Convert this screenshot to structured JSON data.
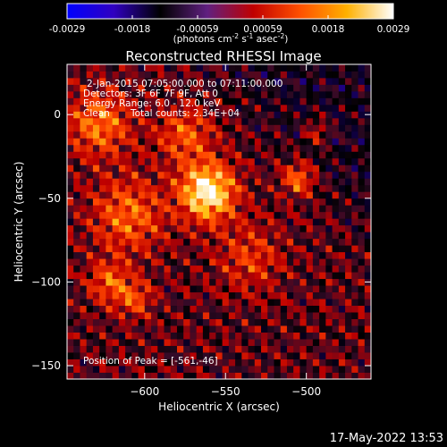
{
  "colorbar": {
    "tick_labels": [
      "-0.0029",
      "-0.0018",
      "-0.00059",
      "0.00059",
      "0.0018",
      "0.0029"
    ],
    "unit_parts": [
      "(photons cm",
      "-2",
      " s",
      "-1",
      " asec",
      "-2",
      ")"
    ],
    "colors": [
      "#0000ff",
      "#3000c0",
      "#000000",
      "#602080",
      "#c00000",
      "#ff5000",
      "#ffb000",
      "#ffffff"
    ]
  },
  "chart_data": {
    "type": "heatmap",
    "title": "Reconstructed RHESSI Image",
    "xlabel": "Heliocentric X (arcsec)",
    "ylabel": "Heliocentric Y (arcsec)",
    "xlim": [
      -648,
      -460
    ],
    "ylim": [
      -158,
      30
    ],
    "x_ticks": [
      -600,
      -550,
      -500
    ],
    "y_ticks": [
      -150,
      -100,
      -50,
      0
    ],
    "x_tick_labels": [
      "−600",
      "−550",
      "−500"
    ],
    "y_tick_labels": [
      "−150",
      "−100",
      "−50",
      "0"
    ],
    "sources": [
      {
        "x": -561,
        "y": -46,
        "amp": 1.0,
        "sigma": 12
      },
      {
        "x": -505,
        "y": -38,
        "amp": 0.55,
        "sigma": 7
      },
      {
        "x": -493,
        "y": -10,
        "amp": 0.35,
        "sigma": 6
      },
      {
        "x": -622,
        "y": -100,
        "amp": 0.45,
        "sigma": 9
      },
      {
        "x": -606,
        "y": -110,
        "amp": 0.4,
        "sigma": 8
      },
      {
        "x": -628,
        "y": -5,
        "amp": 0.55,
        "sigma": 14
      },
      {
        "x": -610,
        "y": -60,
        "amp": 0.5,
        "sigma": 16
      },
      {
        "x": -575,
        "y": -12,
        "amp": 0.45,
        "sigma": 12
      },
      {
        "x": -535,
        "y": -85,
        "amp": 0.35,
        "sigma": 14
      }
    ],
    "annotations": [
      "2-Jan-2015 07:05:00.000 to 07:11:00.000",
      "Detectors: 3F 6F 7F 9F, Att 0",
      "Energy Range: 6.0 - 12.0 keV",
      "Clean",
      "Total counts: 2.34E+04"
    ],
    "peak_label": "Position of Peak = [-561,-46]"
  },
  "footer": {
    "datetime": "17-May-2022 13:53"
  }
}
